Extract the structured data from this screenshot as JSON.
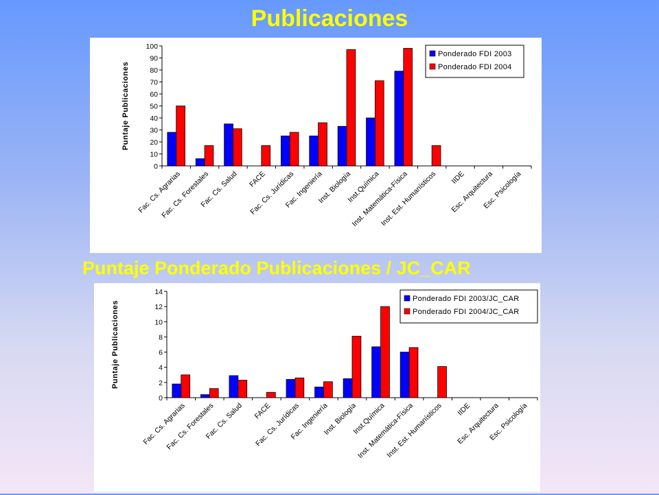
{
  "page": {
    "title_top": "Publicaciones",
    "title_bottom": "Puntaje Ponderado Publicaciones  / JC_CAR"
  },
  "colors": {
    "series1": "#0000ff",
    "series2": "#ff0000",
    "title": "#ffff00"
  },
  "chart_data": [
    {
      "type": "bar",
      "ylabel": "Puntaje Publicaciones",
      "ylim": [
        0,
        100
      ],
      "yticks": [
        "0",
        "10",
        "20",
        "30",
        "40",
        "50",
        "60",
        "70",
        "80",
        "90",
        "100"
      ],
      "legend_position": "top-right",
      "grid": false,
      "categories": [
        "Fac. Cs. Agrarias",
        "Fac. Cs. Forestales",
        "Fac. Cs. Salud",
        "FACE",
        "Fac. Cs. Jurídicas",
        "Fac. Ingeniería",
        "Inst. Biología",
        "Inst.Química",
        "Inst. Matemática-Física",
        "Inst. Est. Humanísticos",
        "IIDE",
        "Esc. Arquitectura",
        "Esc. Psicología"
      ],
      "series": [
        {
          "name": "Ponderado FDI 2003",
          "values": [
            28,
            6,
            35,
            0,
            25,
            25,
            33,
            40,
            79,
            0,
            0,
            0,
            0
          ]
        },
        {
          "name": "Ponderado FDI 2004",
          "values": [
            50,
            17,
            31,
            17,
            28,
            36,
            97,
            71,
            98,
            17,
            0,
            0,
            0
          ]
        }
      ]
    },
    {
      "type": "bar",
      "ylabel": "Puntaje Publicaciones",
      "ylim": [
        0,
        14
      ],
      "yticks": [
        "0",
        "2",
        "4",
        "6",
        "8",
        "10",
        "12",
        "14"
      ],
      "legend_position": "top-right",
      "grid": false,
      "categories": [
        "Fac. Cs. Agrarias",
        "Fac. Cs. Forestales",
        "Fac. Cs. Salud",
        "FACE",
        "Fac. Cs. Jurídicas",
        "Fac. Ingeniería",
        "Inst. Biología",
        "Inst.Química",
        "Inst. Matemática-Física",
        "Inst. Est. Humanísticos",
        "IIDE",
        "Esc. Arquitectura",
        "Esc. Psicología"
      ],
      "series": [
        {
          "name": "Ponderado FDI 2003/JC_CAR",
          "values": [
            1.8,
            0.4,
            2.9,
            0,
            2.4,
            1.4,
            2.5,
            6.7,
            6.0,
            0,
            0,
            0,
            0
          ]
        },
        {
          "name": "Ponderado FDI 2004/JC_CAR",
          "values": [
            3.0,
            1.2,
            2.3,
            0.7,
            2.6,
            2.1,
            8.1,
            12.0,
            6.6,
            4.1,
            0,
            0,
            0
          ]
        }
      ]
    }
  ]
}
